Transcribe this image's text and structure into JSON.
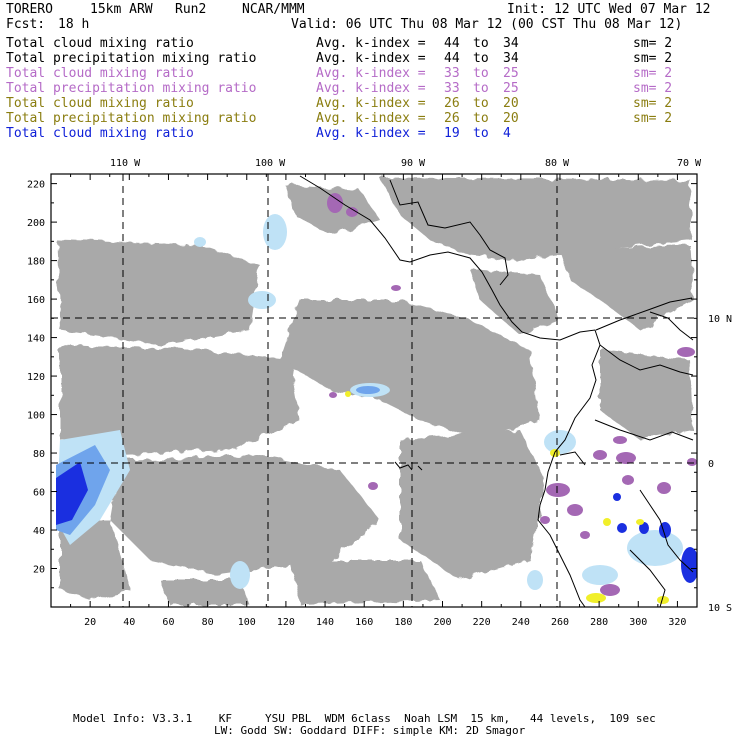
{
  "header": {
    "model": "TORERO",
    "resolution": "15km ARW",
    "run": "Run2",
    "center": "NCAR/MMM",
    "init": "Init: 12 UTC Wed 07 Mar 12",
    "fcst_label": "Fcst:",
    "fcst_value": "18 h",
    "valid": "Valid: 06 UTC Thu 08 Mar 12 (00 CST Thu 08 Mar 12)"
  },
  "legend": [
    {
      "field": "Total cloud mixing ratio",
      "k_label": "Avg. k-index =",
      "k_from": "44",
      "to": "to",
      "k_to": "34",
      "sm": "sm= 2",
      "color": "#000000"
    },
    {
      "field": "Total precipitation mixing ratio",
      "k_label": "Avg. k-index =",
      "k_from": "44",
      "to": "to",
      "k_to": "34",
      "sm": "sm= 2",
      "color": "#000000"
    },
    {
      "field": "Total cloud mixing ratio",
      "k_label": "Avg. k-index =",
      "k_from": "33",
      "to": "to",
      "k_to": "25",
      "sm": "sm= 2",
      "color": "#b56bc7"
    },
    {
      "field": "Total precipitation mixing ratio",
      "k_label": "Avg. k-index =",
      "k_from": "33",
      "to": "to",
      "k_to": "25",
      "sm": "sm= 2",
      "color": "#b56bc7"
    },
    {
      "field": "Total cloud mixing ratio",
      "k_label": "Avg. k-index =",
      "k_from": "26",
      "to": "to",
      "k_to": "20",
      "sm": "sm= 2",
      "color": "#8a7d10"
    },
    {
      "field": "Total precipitation mixing ratio",
      "k_label": "Avg. k-index =",
      "k_from": "26",
      "to": "to",
      "k_to": "20",
      "sm": "sm= 2",
      "color": "#8a7d10"
    },
    {
      "field": "Total cloud mixing ratio",
      "k_label": "Avg. k-index =",
      "k_from": "19",
      "to": "to",
      "k_to": "4",
      "sm": "",
      "color": "#1020d8"
    }
  ],
  "axes": {
    "top_lon_labels": [
      "110 W",
      "100 W",
      "90 W",
      "80 W",
      "70 W"
    ],
    "right_lat_labels": [
      "10 N",
      "0",
      "10 S"
    ],
    "left_ticks": [
      "220",
      "200",
      "180",
      "160",
      "140",
      "120",
      "100",
      "80",
      "60",
      "40",
      "20"
    ],
    "bottom_ticks": [
      "20",
      "40",
      "60",
      "80",
      "100",
      "120",
      "140",
      "160",
      "180",
      "200",
      "220",
      "240",
      "260",
      "280",
      "300",
      "320"
    ]
  },
  "footer": {
    "line1": "Model Info: V3.3.1    KF     YSU PBL  WDM 6class  Noah LSM  15 km,   44 levels,  109 sec",
    "line2": "LW: Godd SW: Goddard DIFF: simple KM: 2D Smagor"
  },
  "colors": {
    "cloud_gray": "#a9a9a9",
    "light_blue": "#bfe2f6",
    "mid_blue": "#6fa4ec",
    "deep_blue": "#1a2fe0",
    "purple": "#a468b4",
    "yellow": "#f1ef2a",
    "coast": "#000000"
  }
}
